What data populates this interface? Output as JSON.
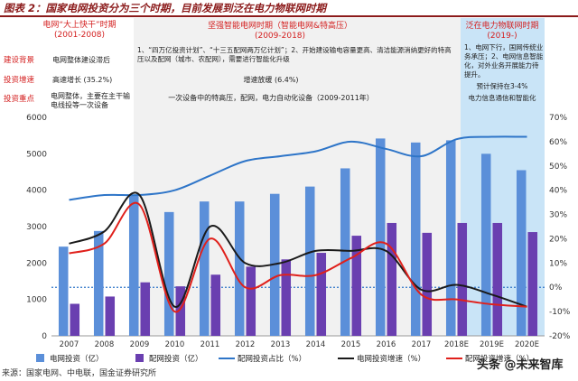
{
  "title": "图表 2：国家电网投资分为三个时期，目前发展到泛在电力物联网时期",
  "source": "来源：国家电网、中电联，国金证券研究所",
  "watermark": "头条 @未来智库",
  "colors": {
    "title": "#8b1a1a",
    "bar_total": "#5b8fd9",
    "bar_dist": "#6a3fb0",
    "line_share": "#2e75c8",
    "line_growth": "#1a1a1a",
    "line_dist_growth": "#e0201b",
    "period3_bg": "#c9e4f7"
  },
  "row_labels": [
    "建设背景",
    "投资增速",
    "投资重点"
  ],
  "periods": [
    {
      "name": "电网“大上快干”时期",
      "years": "(2001-2008)",
      "background": "电网整体建设滞后",
      "growth": "高速增长 (35.2%)",
      "focus": "电网整体，主要在主干输电线投等一次设备"
    },
    {
      "name": "坚强智能电网时期（智能电网&特高压）",
      "years": "(2009-2018)",
      "background": "1、“四万亿投资计划”、“十三五配网两万亿计划”；2、开始建设输电容量更高、清洁能源消纳更好的特高压以及配网（城市、农配网），需要进行智能化升级",
      "growth": "增速放缓 (6.4%)",
      "focus": "一次设备中的特高压，配网，电力自动化设备（2009-2011年）"
    },
    {
      "name": "泛在电力物联网时期",
      "years": "(2019-)",
      "background": "1、电网下行，国网传统业务承压；2、电网信息智能化，对外业务开展能力待提升。",
      "growth": "预计保持在3-4%",
      "focus": "电力信息通信和智能化"
    }
  ],
  "chart_data": {
    "type": "bar",
    "categories": [
      "2007",
      "2008",
      "2009",
      "2010",
      "2011",
      "2012",
      "2013",
      "2014",
      "2015",
      "2016",
      "2017",
      "2018E",
      "2019E",
      "2020E"
    ],
    "ylim_left": [
      0,
      6000
    ],
    "yticks_left": [
      "0",
      "1000",
      "2000",
      "3000",
      "4000",
      "5000",
      "6000"
    ],
    "ylim_right": [
      -20,
      70
    ],
    "yticks_right": [
      "-20%",
      "-10%",
      "0%",
      "10%",
      "20%",
      "30%",
      "40%",
      "50%",
      "60%",
      "70%"
    ],
    "series": [
      {
        "name": "电网投资（亿）",
        "type": "bar",
        "values": [
          2450,
          2880,
          3880,
          3400,
          3690,
          3690,
          3900,
          4100,
          4600,
          5420,
          5310,
          5370,
          5000,
          4550
        ]
      },
      {
        "name": "配网投资（亿）",
        "type": "bar",
        "values": [
          880,
          1080,
          1470,
          1360,
          1680,
          1900,
          2100,
          2280,
          2750,
          3100,
          2830,
          3100,
          3100,
          2850
        ]
      },
      {
        "name": "配网投资占比（%）",
        "type": "line",
        "axis": "right",
        "values": [
          36,
          38,
          38,
          40,
          46,
          52,
          54,
          56,
          60,
          57,
          54,
          61,
          62,
          62
        ]
      },
      {
        "name": "电网投资增速（%）",
        "type": "line",
        "axis": "right",
        "values": [
          18,
          23,
          38,
          -8,
          25,
          10,
          10,
          15,
          15,
          15,
          -1,
          1,
          -3,
          -8
        ]
      },
      {
        "name": "配网投资增速（%）",
        "type": "line",
        "axis": "right",
        "values": [
          14,
          18,
          34,
          -10,
          20,
          0,
          5,
          5,
          12,
          18,
          -3,
          -5,
          -7,
          -8
        ]
      }
    ],
    "reference_line": {
      "axis": "right",
      "value": 0,
      "style": "dotted"
    },
    "legend_position": "bottom"
  }
}
